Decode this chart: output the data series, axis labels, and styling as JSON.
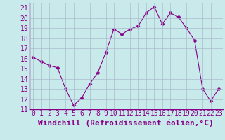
{
  "x": [
    0,
    1,
    2,
    3,
    4,
    5,
    6,
    7,
    8,
    9,
    10,
    11,
    12,
    13,
    14,
    15,
    16,
    17,
    18,
    19,
    20,
    21,
    22,
    23
  ],
  "y": [
    16.1,
    15.7,
    15.3,
    15.1,
    13.0,
    11.4,
    12.1,
    13.5,
    14.6,
    16.6,
    18.9,
    18.4,
    18.9,
    19.2,
    20.5,
    21.1,
    19.4,
    20.5,
    20.1,
    19.0,
    17.8,
    13.0,
    11.8,
    13.0
  ],
  "line_color": "#880088",
  "marker": "D",
  "marker_size": 2.5,
  "bg_color": "#c8eaea",
  "grid_color": "#aabccc",
  "xlabel": "Windchill (Refroidissement éolien,°C)",
  "xlabel_color": "#880088",
  "ylim": [
    11,
    21.5
  ],
  "yticks": [
    11,
    12,
    13,
    14,
    15,
    16,
    17,
    18,
    19,
    20,
    21
  ],
  "xticks": [
    0,
    1,
    2,
    3,
    4,
    5,
    6,
    7,
    8,
    9,
    10,
    11,
    12,
    13,
    14,
    15,
    16,
    17,
    18,
    19,
    20,
    21,
    22,
    23
  ],
  "tick_color": "#880088",
  "tick_fontsize": 7,
  "xlabel_fontsize": 8,
  "spine_color": "#880088",
  "xlim": [
    -0.5,
    23.5
  ]
}
